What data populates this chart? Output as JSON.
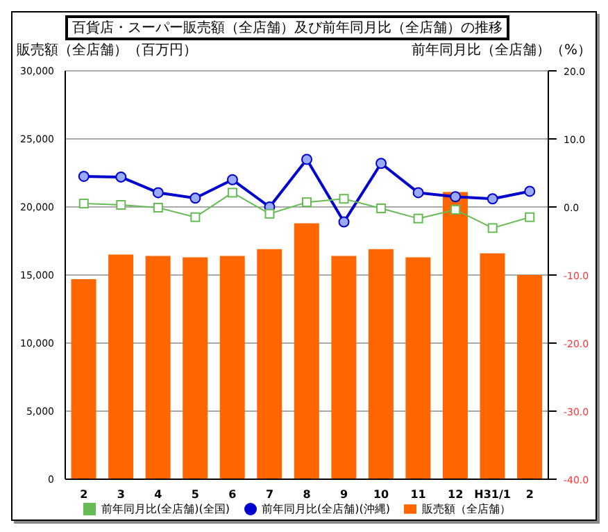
{
  "chart_data": {
    "type": "bar",
    "title": "百貨店・スーパー販売額（全店舗）及び前年同月比（全店舗）の推移",
    "ylabel": "販売額（全店舗）（百万円）",
    "y2label": "前年同月比（全店舗）（%）",
    "categories": [
      "2",
      "3",
      "4",
      "5",
      "6",
      "7",
      "8",
      "9",
      "10",
      "11",
      "12",
      "H31/1",
      "2"
    ],
    "series": [
      {
        "name": "販売額（全店舗）",
        "color": "#ff6600",
        "values": [
          14700,
          16500,
          16400,
          16300,
          16400,
          16900,
          18800,
          16400,
          16900,
          16300,
          21100,
          16600,
          15000
        ]
      },
      {
        "name": "前年同月比(全店舗)(沖縄)",
        "type": "line",
        "axis": "y2",
        "color": "#0000cc",
        "marker": "circle",
        "values": [
          4.5,
          4.4,
          2.1,
          1.3,
          4.0,
          0.0,
          7.0,
          -2.2,
          6.4,
          2.1,
          1.5,
          1.2,
          2.3
        ]
      },
      {
        "name": "前年同月比(全店舗)(全国)",
        "type": "line",
        "axis": "y2",
        "color": "#66bb55",
        "marker": "square",
        "values": [
          0.5,
          0.3,
          -0.1,
          -1.5,
          2.1,
          -1.0,
          0.7,
          1.2,
          -0.2,
          -1.7,
          -0.4,
          -3.1,
          -1.5
        ]
      }
    ],
    "ylim": [
      0,
      30000
    ],
    "yticks": [
      {
        "value": 0,
        "label": "0"
      },
      {
        "value": 5000,
        "label": "5,000"
      },
      {
        "value": 10000,
        "label": "10,000"
      },
      {
        "value": 15000,
        "label": "15,000"
      },
      {
        "value": 20000,
        "label": "20,000"
      },
      {
        "value": 25000,
        "label": "25,000"
      },
      {
        "value": 30000,
        "label": "30,000"
      }
    ],
    "y2lim": [
      -40,
      20
    ],
    "y2ticks": [
      {
        "value": -40,
        "label": "-40.0"
      },
      {
        "value": -30,
        "label": "-30.0"
      },
      {
        "value": -20,
        "label": "-20.0"
      },
      {
        "value": -10,
        "label": "-10.0"
      },
      {
        "value": 0,
        "label": "0.0"
      },
      {
        "value": 10,
        "label": "10.0"
      },
      {
        "value": 20,
        "label": "20.0"
      }
    ],
    "grid": "y",
    "legend": "bottom"
  }
}
